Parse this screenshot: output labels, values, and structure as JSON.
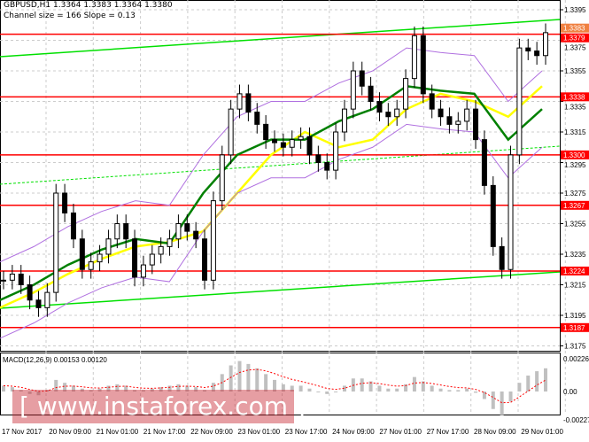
{
  "header": {
    "symbol_line": "GBPUSD,H1  1.3364 1.3383 1.3364 1.3380",
    "channel_line": "Channel size = 166 Slope = 0.13"
  },
  "watermark": "[ www.instaforex.com ]",
  "colors": {
    "levels": "#ff0000",
    "channel": "#00e000",
    "ma_fast": "#ffff00",
    "ma_slow": "#008000",
    "bands": "#b070e0",
    "macd_hist": "#c0c0c0",
    "macd_signal": "#ff0000"
  },
  "chart_data": [
    {
      "type": "candlestick",
      "title": "GBPUSD,H1",
      "ylim": [
        1.3165,
        1.34
      ],
      "y_ticks": [
        "1.3395",
        "1.3375",
        "1.3355",
        "1.3335",
        "1.3315",
        "1.3295",
        "1.3275",
        "1.3255",
        "1.3235",
        "1.3215",
        "1.3195",
        "1.3175"
      ],
      "x_ticks": [
        "17 Nov 2017",
        "20 Nov 09:00",
        "21 Nov 01:00",
        "21 Nov 17:00",
        "22 Nov 09:00",
        "23 Nov 01:00",
        "23 Nov 17:00",
        "24 Nov 09:00",
        "27 Nov 01:00",
        "27 Nov 17:00",
        "28 Nov 09:00",
        "29 Nov 01:00"
      ],
      "levels": [
        "1.3379",
        "1.3338",
        "1.3300",
        "1.3267",
        "1.3224",
        "1.3187"
      ],
      "current_price_label": "1.3383",
      "closes": [
        1.3218,
        1.3222,
        1.3215,
        1.3205,
        1.32,
        1.321,
        1.3275,
        1.3262,
        1.3245,
        1.3225,
        1.323,
        1.3235,
        1.3245,
        1.3255,
        1.3245,
        1.322,
        1.3228,
        1.3235,
        1.324,
        1.3245,
        1.3255,
        1.325,
        1.3245,
        1.3218,
        1.327,
        1.33,
        1.333,
        1.334,
        1.3328,
        1.332,
        1.331,
        1.3308,
        1.3305,
        1.331,
        1.3312,
        1.33,
        1.3295,
        1.329,
        1.3315,
        1.333,
        1.3355,
        1.3345,
        1.3335,
        1.3328,
        1.3325,
        1.333,
        1.335,
        1.3378,
        1.334,
        1.333,
        1.3325,
        1.332,
        1.3322,
        1.333,
        1.331,
        1.328,
        1.324,
        1.3225,
        1.33,
        1.337,
        1.3368,
        1.3365,
        1.338
      ],
      "ma_fast": [
        1.32,
        1.321,
        1.3222,
        1.3232,
        1.324,
        1.3243,
        1.325,
        1.3275,
        1.33,
        1.3315,
        1.3305,
        1.331,
        1.333,
        1.334,
        1.3335,
        1.3325,
        1.3345
      ],
      "ma_slow": [
        1.3205,
        1.3215,
        1.3228,
        1.3238,
        1.3245,
        1.3242,
        1.3275,
        1.33,
        1.331,
        1.331,
        1.3322,
        1.333,
        1.3345,
        1.3342,
        1.334,
        1.331,
        1.333
      ]
    },
    {
      "type": "bar",
      "title": "MACD(12,26,9) 0.00153 0.00120",
      "ylim": [
        -0.00227,
        0.00226
      ],
      "y_ticks": [
        "0.00226",
        "0.00",
        "-0.00227"
      ],
      "histogram": [
        0.0004,
        0.0003,
        0.0001,
        -0.0002,
        -0.0003,
        0.0001,
        0.0008,
        0.0006,
        0.0004,
        0.0002,
        0.0001,
        0.0002,
        0.0004,
        0.0005,
        0.0004,
        0.0001,
        0.0001,
        0.0002,
        0.0003,
        0.0004,
        0.0005,
        0.0004,
        0.0003,
        0.0001,
        0.0006,
        0.0012,
        0.0018,
        0.0021,
        0.0019,
        0.0016,
        0.0012,
        0.0008,
        0.0005,
        0.0004,
        0.0004,
        0.0002,
        0.0,
        -0.0002,
        0.0,
        0.0004,
        0.0009,
        0.0009,
        0.0007,
        0.0004,
        0.0002,
        0.0002,
        0.0005,
        0.001,
        0.0007,
        0.0004,
        0.0002,
        0.0001,
        0.0001,
        0.0002,
        -0.0001,
        -0.0006,
        -0.0014,
        -0.0019,
        -0.0008,
        0.0006,
        0.0011,
        0.0014,
        0.0016
      ]
    }
  ]
}
